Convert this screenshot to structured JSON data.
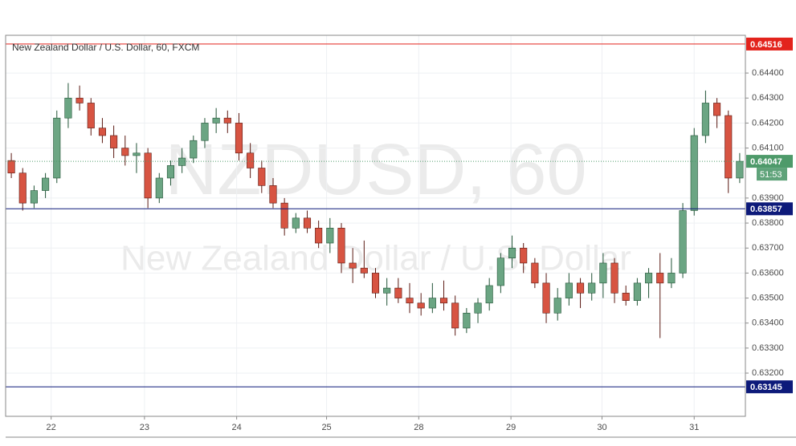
{
  "chart_data": {
    "type": "candlestick",
    "title": "New Zealand Dollar / U.S. Dollar, 60, FXCM",
    "watermark": "NZDUSD, 60",
    "watermark_subtitle": "New Zealand Dollar / U.S. Dollar",
    "up_color": "#6ba583",
    "down_color": "#d75442",
    "grid": true,
    "xlim": [
      0,
      65
    ],
    "ylim": [
      0.63027,
      0.64551
    ],
    "xticks": [
      {
        "value": 4,
        "label": "22"
      },
      {
        "value": 12.2,
        "label": "23"
      },
      {
        "value": 20.3,
        "label": "24"
      },
      {
        "value": 28.2,
        "label": "25"
      },
      {
        "value": 36.3,
        "label": "28"
      },
      {
        "value": 44.4,
        "label": "29"
      },
      {
        "value": 52.4,
        "label": "30"
      },
      {
        "value": 60.5,
        "label": "31"
      }
    ],
    "yticks": [
      {
        "value": 0.632,
        "label": "0.63200"
      },
      {
        "value": 0.633,
        "label": "0.63300"
      },
      {
        "value": 0.634,
        "label": "0.63400"
      },
      {
        "value": 0.635,
        "label": "0.63500"
      },
      {
        "value": 0.636,
        "label": "0.63600"
      },
      {
        "value": 0.637,
        "label": "0.63700"
      },
      {
        "value": 0.638,
        "label": "0.63800"
      },
      {
        "value": 0.639,
        "label": "0.63900"
      },
      {
        "value": 0.641,
        "label": "0.64100"
      },
      {
        "value": 0.642,
        "label": "0.64200"
      },
      {
        "value": 0.643,
        "label": "0.64300"
      },
      {
        "value": 0.644,
        "label": "0.64400"
      }
    ],
    "x": [
      0,
      1,
      2,
      3,
      4,
      5,
      6,
      7,
      8,
      9,
      10,
      11,
      12,
      13,
      14,
      15,
      16,
      17,
      18,
      19,
      20,
      21,
      22,
      23,
      24,
      25,
      26,
      27,
      28,
      29,
      30,
      31,
      32,
      33,
      34,
      35,
      36,
      37,
      38,
      39,
      40,
      41,
      42,
      43,
      44,
      45,
      46,
      47,
      48,
      49,
      50,
      51,
      52,
      53,
      54,
      55,
      56,
      57,
      58,
      59,
      60,
      61,
      62,
      63,
      64
    ],
    "open": [
      0.6405,
      0.64,
      0.6388,
      0.6393,
      0.6398,
      0.6422,
      0.643,
      0.6428,
      0.6418,
      0.6415,
      0.641,
      0.6407,
      0.6408,
      0.639,
      0.6398,
      0.6403,
      0.6406,
      0.6413,
      0.642,
      0.6422,
      0.642,
      0.6408,
      0.6402,
      0.6395,
      0.6388,
      0.6378,
      0.6382,
      0.6378,
      0.6372,
      0.6378,
      0.6364,
      0.6362,
      0.636,
      0.6352,
      0.6354,
      0.635,
      0.6348,
      0.6346,
      0.635,
      0.6348,
      0.6338,
      0.6344,
      0.6348,
      0.6355,
      0.6366,
      0.637,
      0.6364,
      0.6356,
      0.6344,
      0.635,
      0.6356,
      0.6352,
      0.6356,
      0.6364,
      0.6352,
      0.6349,
      0.6356,
      0.636,
      0.6356,
      0.636,
      0.6385,
      0.6415,
      0.6428,
      0.6423,
      0.6398
    ],
    "high": [
      0.6408,
      0.6402,
      0.6395,
      0.64,
      0.6425,
      0.6436,
      0.6435,
      0.643,
      0.6422,
      0.6419,
      0.6415,
      0.6412,
      0.641,
      0.64,
      0.6405,
      0.641,
      0.6415,
      0.6422,
      0.6426,
      0.6425,
      0.6424,
      0.6412,
      0.6405,
      0.6398,
      0.639,
      0.6384,
      0.6385,
      0.6381,
      0.6382,
      0.638,
      0.637,
      0.6373,
      0.6362,
      0.6358,
      0.6358,
      0.6356,
      0.6352,
      0.6356,
      0.6357,
      0.6351,
      0.6346,
      0.635,
      0.6358,
      0.6368,
      0.6375,
      0.6372,
      0.6366,
      0.636,
      0.6354,
      0.636,
      0.6358,
      0.636,
      0.6368,
      0.6366,
      0.6355,
      0.6358,
      0.6362,
      0.6368,
      0.6366,
      0.6388,
      0.6418,
      0.6433,
      0.643,
      0.6425,
      0.6408
    ],
    "low": [
      0.6398,
      0.6385,
      0.6386,
      0.639,
      0.6396,
      0.6418,
      0.6425,
      0.6415,
      0.6412,
      0.6406,
      0.6403,
      0.64,
      0.6386,
      0.6388,
      0.6395,
      0.64,
      0.6404,
      0.641,
      0.6416,
      0.6416,
      0.6405,
      0.6398,
      0.6392,
      0.6386,
      0.6375,
      0.6376,
      0.6376,
      0.637,
      0.6368,
      0.636,
      0.6356,
      0.6358,
      0.635,
      0.6347,
      0.6348,
      0.6344,
      0.6343,
      0.6344,
      0.6345,
      0.6335,
      0.6336,
      0.634,
      0.6345,
      0.6352,
      0.6362,
      0.636,
      0.6354,
      0.634,
      0.6341,
      0.6347,
      0.6346,
      0.6349,
      0.635,
      0.6348,
      0.6347,
      0.6347,
      0.635,
      0.6334,
      0.6354,
      0.6358,
      0.6383,
      0.6412,
      0.6418,
      0.6392,
      0.6396
    ],
    "close": [
      0.64,
      0.6388,
      0.6393,
      0.6398,
      0.6422,
      0.643,
      0.6428,
      0.6418,
      0.6415,
      0.641,
      0.6407,
      0.6408,
      0.639,
      0.6398,
      0.6403,
      0.6406,
      0.6413,
      0.642,
      0.6422,
      0.642,
      0.6408,
      0.6402,
      0.6395,
      0.6388,
      0.6378,
      0.6382,
      0.6378,
      0.6372,
      0.6378,
      0.6364,
      0.6362,
      0.636,
      0.6352,
      0.6354,
      0.635,
      0.6348,
      0.6346,
      0.635,
      0.6348,
      0.6338,
      0.6344,
      0.6348,
      0.6355,
      0.6366,
      0.637,
      0.6364,
      0.6356,
      0.6344,
      0.635,
      0.6356,
      0.6352,
      0.6356,
      0.6364,
      0.6352,
      0.6349,
      0.6356,
      0.636,
      0.6356,
      0.636,
      0.6385,
      0.6415,
      0.6428,
      0.6423,
      0.6398,
      0.64047
    ],
    "levels": [
      {
        "value": 0.64516,
        "label": "0.64516",
        "color": "#e3231c",
        "style": "solid"
      },
      {
        "value": 0.64047,
        "label": "0.64047",
        "color": "#4e9a6a",
        "style": "dotted"
      },
      {
        "value": 0.63857,
        "label": "0.63857",
        "color": "#0d1a7a",
        "style": "solid"
      },
      {
        "value": 0.63145,
        "label": "0.63145",
        "color": "#0d1a7a",
        "style": "solid"
      }
    ],
    "countdown": "51:53"
  }
}
